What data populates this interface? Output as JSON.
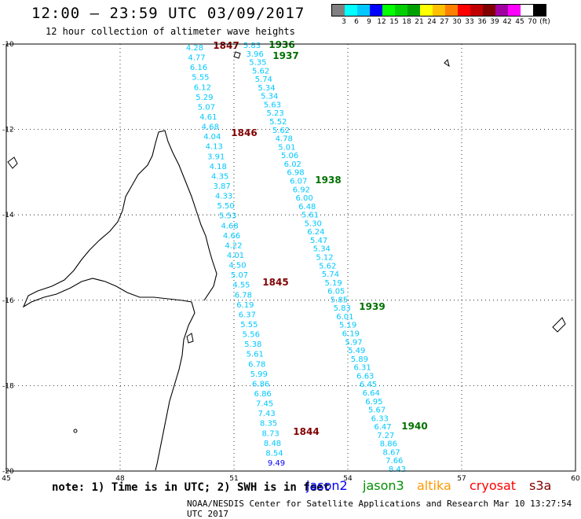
{
  "header": {
    "title": "12:00 – 23:59 UTC 03/09/2017",
    "subtitle": "12 hour collection of altimeter wave heights"
  },
  "legend": {
    "scale": [
      {
        "label": "3",
        "color": "#808080"
      },
      {
        "label": "6",
        "color": "#00ffff"
      },
      {
        "label": "9",
        "color": "#00c8ff"
      },
      {
        "label": "12",
        "color": "#0000ff"
      },
      {
        "label": "15",
        "color": "#00ff00"
      },
      {
        "label": "18",
        "color": "#00d000"
      },
      {
        "label": "21",
        "color": "#00a000"
      },
      {
        "label": "24",
        "color": "#ffff00"
      },
      {
        "label": "27",
        "color": "#ffc000"
      },
      {
        "label": "30",
        "color": "#ff8000"
      },
      {
        "label": "33",
        "color": "#ff0000"
      },
      {
        "label": "36",
        "color": "#c00000"
      },
      {
        "label": "39",
        "color": "#800000"
      },
      {
        "label": "42",
        "color": "#a000a0"
      },
      {
        "label": "45",
        "color": "#ff00ff"
      },
      {
        "label": "70",
        "color": "#ffffff"
      },
      {
        "label": "(ft)",
        "color": "#000000"
      }
    ]
  },
  "map": {
    "lon_range": [
      45,
      60
    ],
    "lat_range": [
      -20,
      -10
    ],
    "lon_ticks": [
      "45",
      "48",
      "51",
      "54",
      "57",
      "60"
    ],
    "lat_ticks": [
      "-10",
      "-12",
      "-14",
      "-16",
      "-18",
      "-20"
    ],
    "grid": "dotted"
  },
  "passes": [
    {
      "name": "west",
      "color": "#00c8ff",
      "values": [
        "4.28",
        "4.77",
        "6.16",
        "5.55",
        "6.12",
        "5.29",
        "5.07",
        "4.61",
        "4.68",
        "4.04",
        "4.13",
        "3.91",
        "4.18",
        "4.35",
        "3.87",
        "4.33",
        "5.50",
        "5.53",
        "4.68",
        "4.66",
        "4.22",
        "4.01",
        "4.50",
        "5.07",
        "4.55",
        "6.78",
        "6.19",
        "6.37",
        "5.55",
        "5.56",
        "5.38",
        "5.61",
        "6.78",
        "5.99",
        "6.86",
        "6.86",
        "7.45",
        "7.43",
        "8.35",
        "8.73",
        "8.48",
        "8.54",
        "9.49"
      ]
    },
    {
      "name": "east",
      "color": "#00c8ff",
      "values": [
        "5.83",
        "3.96",
        "5.35",
        "5.62",
        "5.74",
        "5.34",
        "5.34",
        "5.63",
        "5.23",
        "5.52",
        "5.62",
        "4.78",
        "5.01",
        "5.06",
        "6.02",
        "6.98",
        "6.07",
        "6.92",
        "6.00",
        "6.48",
        "5.61",
        "5.30",
        "6.24",
        "5.47",
        "5.34",
        "5.12",
        "5.62",
        "5.74",
        "5.19",
        "6.05",
        "5.85",
        "5.83",
        "6.01",
        "5.19",
        "6.19",
        "5.97",
        "5.49",
        "5.89",
        "6.31",
        "6.63",
        "6.45",
        "6.64",
        "6.95",
        "5.67",
        "6.33",
        "6.47",
        "7.27",
        "8.86",
        "8.67",
        "7.66",
        "8.43"
      ]
    }
  ],
  "times": {
    "cryosat": [
      "1847",
      "1846",
      "1845",
      "1844"
    ],
    "jason3": [
      "1936",
      "1937",
      "1938",
      "1939",
      "1940"
    ]
  },
  "footer": {
    "note": "note: 1) Time is in UTC; 2) SWH is in feet",
    "credit": "NOAA/NESDIS Center for Satellite Applications and Research    Mar 10 13:27:54 UTC 2017"
  },
  "satellites": [
    {
      "name": "jason2",
      "color": "#0000ff"
    },
    {
      "name": "jason3",
      "color": "#009000"
    },
    {
      "name": "altika",
      "color": "#ff9900"
    },
    {
      "name": "cryosat",
      "color": "#ff0000"
    },
    {
      "name": "s3a",
      "color": "#800000"
    }
  ]
}
